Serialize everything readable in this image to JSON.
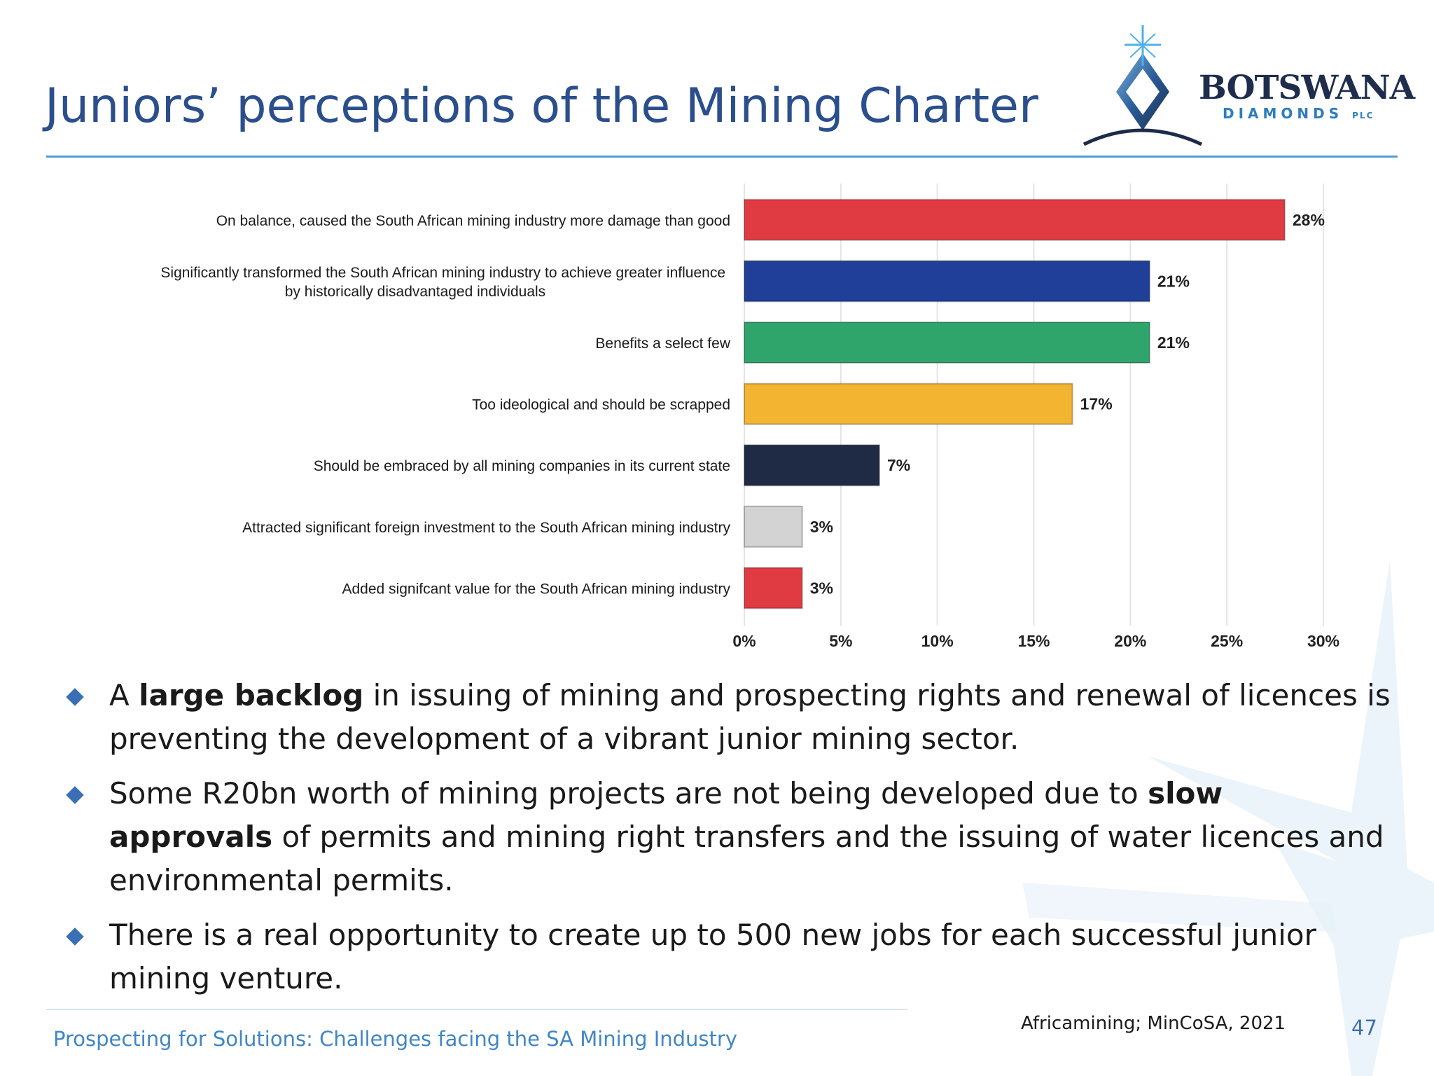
{
  "slide": {
    "title": "Juniors’ perceptions of the Mining Charter",
    "logo": {
      "word": "BOTSWANA",
      "sub": "DIAMONDS",
      "sub_small": "PLC",
      "accent_color": "#2e7dbd"
    },
    "bullets": [
      {
        "parts": [
          {
            "text": "A "
          },
          {
            "text": "large backlog",
            "bold": true
          },
          {
            "text": " in issuing of mining and prospecting rights and renewal of licences is preventing the development of a vibrant junior mining sector."
          }
        ]
      },
      {
        "parts": [
          {
            "text": "Some R20bn worth of mining projects are not being developed due to "
          },
          {
            "text": "slow approvals",
            "bold": true
          },
          {
            "text": " of permits and mining right transfers and the issuing of water licences and environmental permits."
          }
        ]
      },
      {
        "parts": [
          {
            "text": "There is a real opportunity to create up to 500 new jobs for each successful junior mining venture."
          }
        ]
      }
    ],
    "footer": {
      "left": "Prospecting for Solutions: Challenges facing the SA Mining Industry",
      "source": "Africamining; MinCoSA, 2021",
      "page": "47"
    }
  },
  "chart_data": {
    "type": "bar",
    "orientation": "horizontal",
    "categories": [
      [
        "On balance, caused the South African mining industry more damage than good"
      ],
      [
        "Significantly transformed the South African mining industry to achieve greater influence",
        "by historically disadvantaged individuals"
      ],
      [
        "Benefits a select few"
      ],
      [
        "Too ideological and should be scrapped"
      ],
      [
        "Should be embraced by all mining companies in its current state"
      ],
      [
        "Attracted significant foreign investment to the South African mining industry"
      ],
      [
        "Added signifcant value for the South African mining industry"
      ]
    ],
    "values": [
      28,
      21,
      21,
      17,
      7,
      3,
      3
    ],
    "value_labels": [
      "28%",
      "21%",
      "21%",
      "17%",
      "7%",
      "3%",
      "3%"
    ],
    "colors": [
      "#e03a43",
      "#1f3f99",
      "#2fa56b",
      "#f2b431",
      "#1f2a44",
      "#d3d3d3",
      "#e03a43"
    ],
    "xlim": [
      0,
      30
    ],
    "xticks": [
      0,
      5,
      10,
      15,
      20,
      25,
      30
    ],
    "xtick_labels": [
      "0%",
      "5%",
      "10%",
      "15%",
      "20%",
      "25%",
      "30%"
    ],
    "grid": "vertical",
    "legend": "none"
  }
}
